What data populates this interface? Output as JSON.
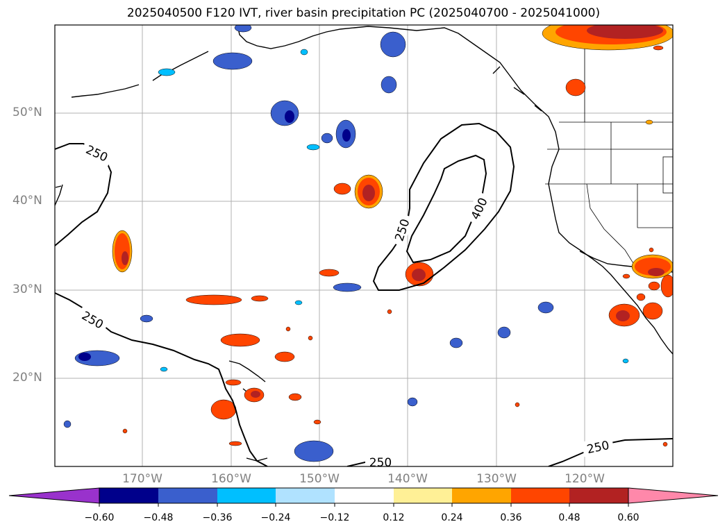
{
  "title": "2025040500 F120 IVT, river basin precipitation PC (2025040700 - 2025041000)",
  "lat_labels": [
    "50°N",
    "40°N",
    "30°N",
    "20°N"
  ],
  "lon_labels": [
    "170°W",
    "160°W",
    "150°W",
    "140°W",
    "130°W",
    "120°W"
  ],
  "contour_labels": [
    "250",
    "250",
    "400",
    "250",
    "250",
    "250"
  ],
  "colorbar": {
    "ticks": [
      "−0.60",
      "−0.48",
      "−0.36",
      "−0.24",
      "−0.12",
      "0.12",
      "0.24",
      "0.36",
      "0.48",
      "0.60"
    ],
    "colors": [
      "#9932cc",
      "#00008b",
      "#3a5fcd",
      "#00bfff",
      "#b0e2ff",
      "#ffffff",
      "#fff096",
      "#ffa500",
      "#ff4500",
      "#b22222",
      "#ff88aa"
    ]
  }
}
